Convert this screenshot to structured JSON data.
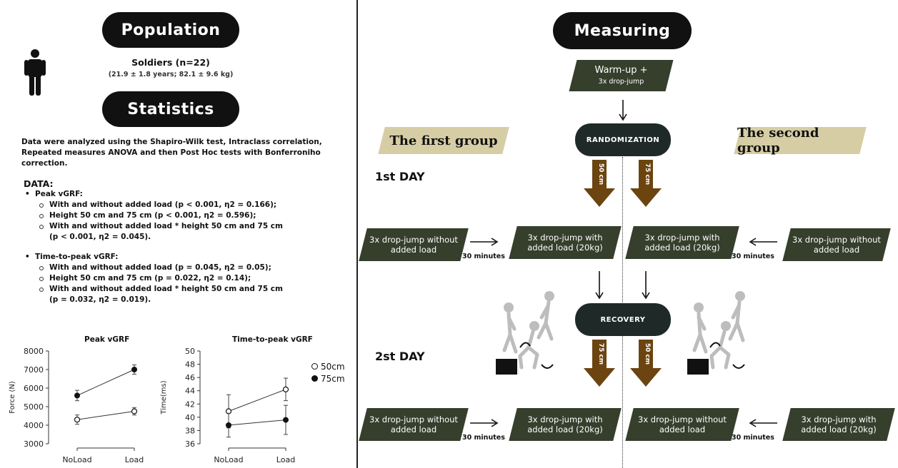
{
  "left": {
    "population_title": "Population",
    "population_text": "Soldiers (n=22)",
    "population_sub": "(21.9 ± 1.8 years; 82.1 ± 9.6 kg)",
    "statistics_title": "Statistics",
    "statistics_text": "Data were analyzed using the Shapiro-Wilk test, Intraclass correlation, Repeated measures ANOVA and then Post Hoc tests with Bonferroniho correction.",
    "data_label": "DATA:",
    "peak_label": "Peak vGRF:",
    "peak_items": [
      "With and without added load  (p < 0.001, η2 = 0.166);",
      "Height 50 cm and 75 cm (p < 0.001, η2 = 0.596);",
      "With and without added load * height 50 cm and 75 cm",
      "(p < 0.001, η2 = 0.045)."
    ],
    "ttp_label": "Time-to-peak vGRF:",
    "ttp_items": [
      "With and without added load (p = 0.045, η2 = 0.05);",
      "Height 50 cm and 75 cm (p = 0.022, η2 = 0.14);",
      "With and without added load * height 50 cm and 75 cm",
      "(p = 0.032, η2 = 0.019)."
    ]
  },
  "right": {
    "measuring_title": "Measuring",
    "warmup_line1": "Warm-up +",
    "warmup_line2": "3x drop-jump",
    "first_group": "The first group",
    "second_group": "The second group",
    "randomization": "RANDOMIZATION",
    "recovery": "RECOVERY",
    "day1": "1st DAY",
    "day2": "2st DAY",
    "arrow_50": "50 cm",
    "arrow_75": "75 cm",
    "minutes": "30 minutes",
    "row1": [
      "3x drop-jump without added load",
      "3x drop-jump with added load (20kg)",
      "3x drop-jump with added load (20kg)",
      "3x drop-jump without added load"
    ],
    "row2": [
      "3x drop-jump without added load",
      "3x drop-jump with added load (20kg)",
      "3x drop-jump without added load",
      "3x drop-jump with added load (20kg)"
    ]
  },
  "chart_data": [
    {
      "type": "line",
      "title": "Peak vGRF",
      "ylabel": "Force (N)",
      "categories": [
        "NoLoad",
        "Load"
      ],
      "ylim": [
        3000,
        8000
      ],
      "yticks": [
        "3000",
        "4000",
        "5000",
        "6000",
        "7000",
        "8000"
      ],
      "series": [
        {
          "name": "50cm",
          "marker": "open",
          "values": [
            4300,
            4750
          ],
          "err": [
            250,
            200
          ]
        },
        {
          "name": "75cm",
          "marker": "filled",
          "values": [
            5600,
            7000
          ],
          "err": [
            280,
            250
          ]
        }
      ]
    },
    {
      "type": "line",
      "title": "Time-to-peak vGRF",
      "ylabel": "Time(ms)",
      "categories": [
        "NoLoad",
        "Load"
      ],
      "ylim": [
        36,
        50
      ],
      "yticks": [
        "36",
        "38",
        "40",
        "42",
        "44",
        "46",
        "48",
        "50"
      ],
      "series": [
        {
          "name": "50cm",
          "marker": "open",
          "values": [
            40.9,
            44.2
          ],
          "err": [
            2.5,
            1.7
          ]
        },
        {
          "name": "75cm",
          "marker": "filled",
          "values": [
            38.8,
            39.6
          ],
          "err": [
            1.8,
            2.2
          ]
        }
      ]
    }
  ],
  "legend": [
    {
      "label": "50cm",
      "marker": "open"
    },
    {
      "label": "75cm",
      "marker": "filled"
    }
  ]
}
